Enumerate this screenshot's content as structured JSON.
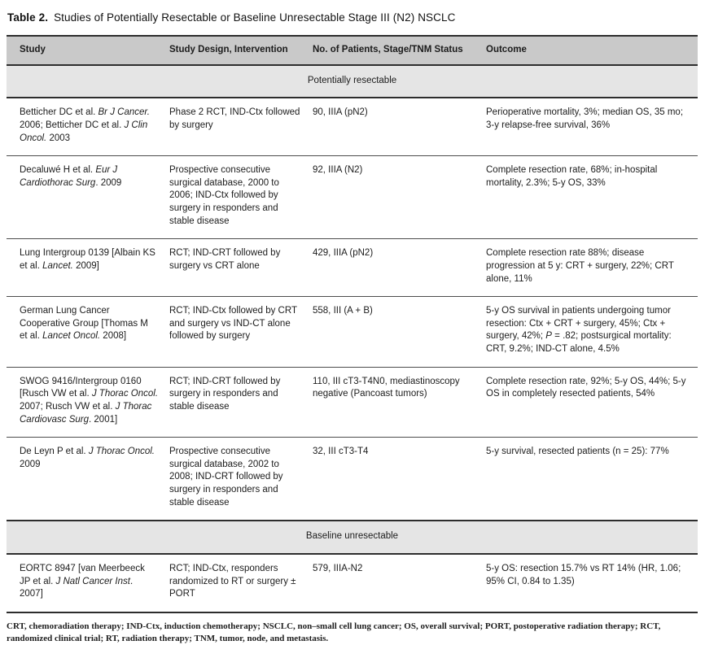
{
  "title": {
    "label": "Table 2.",
    "text": "Studies of Potentially Resectable or Baseline Unresectable Stage III (N2) NSCLC"
  },
  "colors": {
    "header_bg": "#c9c9c9",
    "section_bg": "#e5e5e5",
    "border_dark": "#2d2d2d",
    "row_divider": "#4c4c4c"
  },
  "table": {
    "headers": [
      "Study",
      "Study Design, Intervention",
      "No. of Patients, Stage/TNM Status",
      "Outcome"
    ],
    "sections": [
      {
        "label": "Potentially resectable",
        "rows": [
          {
            "study": [
              {
                "t": "Betticher DC et al. "
              },
              {
                "t": "Br J Cancer.",
                "i": true
              },
              {
                "t": " 2006; Betticher DC et al. "
              },
              {
                "t": "J Clin Oncol.",
                "i": true
              },
              {
                "t": " 2003"
              }
            ],
            "design": [
              {
                "t": "Phase 2 RCT, IND-Ctx followed by surgery"
              }
            ],
            "patients": [
              {
                "t": "90, IIIA (pN2)"
              }
            ],
            "outcome": [
              {
                "t": "Perioperative mortality, 3%; median OS, 35 mo; 3-y relapse-free survival, 36%"
              }
            ]
          },
          {
            "study": [
              {
                "t": "Decaluwé H et al. "
              },
              {
                "t": "Eur J Cardiothorac Surg",
                "i": true
              },
              {
                "t": ". 2009"
              }
            ],
            "design": [
              {
                "t": "Prospective consecutive surgical database, 2000 to 2006; IND-Ctx followed by surgery in responders and stable disease"
              }
            ],
            "patients": [
              {
                "t": "92, IIIA (N2)"
              }
            ],
            "outcome": [
              {
                "t": "Complete resection rate, 68%; in-hospital mortality, 2.3%; 5-y OS, 33%"
              }
            ]
          },
          {
            "study": [
              {
                "t": "Lung Intergroup 0139 [Albain KS et al. "
              },
              {
                "t": "Lancet.",
                "i": true
              },
              {
                "t": " 2009]"
              }
            ],
            "design": [
              {
                "t": "RCT; IND-CRT followed by surgery vs CRT alone"
              }
            ],
            "patients": [
              {
                "t": "429, IIIA (pN2)"
              }
            ],
            "outcome": [
              {
                "t": "Complete resection rate 88%; disease progression at 5 y: CRT + surgery, 22%; CRT alone, 11%"
              }
            ]
          },
          {
            "study": [
              {
                "t": "German Lung Cancer Cooperative Group [Thomas M et al. "
              },
              {
                "t": "Lancet Oncol.",
                "i": true
              },
              {
                "t": " 2008]"
              }
            ],
            "design": [
              {
                "t": "RCT; IND-Ctx followed by CRT and surgery vs IND-CT alone followed by surgery"
              }
            ],
            "patients": [
              {
                "t": "558, III (A + B)"
              }
            ],
            "outcome": [
              {
                "t": "5-y OS survival in patients undergoing tumor resection: Ctx + CRT + surgery, 45%; Ctx + surgery, 42%; "
              },
              {
                "t": "P",
                "i": true
              },
              {
                "t": " = .82; postsurgical mortality: CRT, 9.2%; IND-CT alone, 4.5%"
              }
            ]
          },
          {
            "study": [
              {
                "t": "SWOG 9416/Intergroup 0160 [Rusch VW et al. "
              },
              {
                "t": "J Thorac Oncol.",
                "i": true
              },
              {
                "t": " 2007; Rusch VW et al. "
              },
              {
                "t": "J Thorac Cardiovasc Surg",
                "i": true
              },
              {
                "t": ". 2001]"
              }
            ],
            "design": [
              {
                "t": "RCT; IND-CRT followed by surgery in responders and stable disease"
              }
            ],
            "patients": [
              {
                "t": "110, III cT3-T4N0, mediastinoscopy negative (Pancoast tumors)"
              }
            ],
            "outcome": [
              {
                "t": "Complete resection rate, 92%; 5-y OS, 44%; 5-y OS in completely resected patients, 54%"
              }
            ]
          },
          {
            "study": [
              {
                "t": "De Leyn P et al. "
              },
              {
                "t": "J Thorac Oncol.",
                "i": true
              },
              {
                "t": " 2009"
              }
            ],
            "design": [
              {
                "t": "Prospective consecutive surgical database, 2002 to 2008; IND-CRT followed by surgery in responders and stable disease"
              }
            ],
            "patients": [
              {
                "t": "32, III cT3-T4"
              }
            ],
            "outcome": [
              {
                "t": "5-y survival, resected patients (n = 25): 77%"
              }
            ]
          }
        ]
      },
      {
        "label": "Baseline unresectable",
        "rows": [
          {
            "study": [
              {
                "t": "EORTC 8947 [van Meerbeeck JP et al. "
              },
              {
                "t": "J Natl Cancer Inst",
                "i": true
              },
              {
                "t": ". 2007]"
              }
            ],
            "design": [
              {
                "t": "RCT; IND-Ctx, responders randomized to RT or surgery ± PORT"
              }
            ],
            "patients": [
              {
                "t": "579, IIIA-N2"
              }
            ],
            "outcome": [
              {
                "t": "5-y OS: resection 15.7% vs RT 14% (HR, 1.06; 95% CI, 0.84 to 1.35)"
              }
            ]
          }
        ]
      }
    ]
  },
  "footnote": "CRT, chemoradiation therapy; IND-Ctx, induction chemotherapy; NSCLC, non–small cell lung cancer; OS, overall survival; PORT, postoperative radiation therapy; RCT, randomized clinical trial; RT, radiation therapy; TNM, tumor, node, and metastasis."
}
